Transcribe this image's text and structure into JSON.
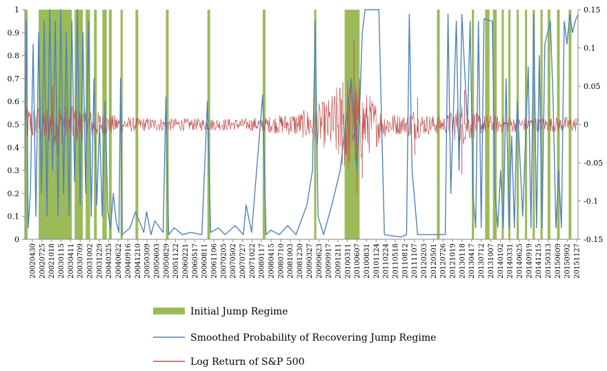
{
  "chart_data": {
    "type": "line",
    "title": "",
    "left_axis": {
      "ylim": [
        0,
        1
      ],
      "ticks": [
        "0",
        "0.1",
        "0.2",
        "0.3",
        "0.4",
        "0.5",
        "0.6",
        "0.7",
        "0.8",
        "0.9",
        "1"
      ]
    },
    "right_axis": {
      "ylim": [
        -0.15,
        0.15
      ],
      "ticks": [
        "-0.15",
        "-0.1",
        "-0.05",
        "0",
        "0.05",
        "0.1",
        "0.15"
      ]
    },
    "x_ticks": [
      "20020430",
      "20020725",
      "20021018",
      "20030115",
      "20030411",
      "20030709",
      "20031002",
      "20031229",
      "20040325",
      "20040622",
      "20040916",
      "20041210",
      "20050309",
      "20050603",
      "20050829",
      "20051122",
      "20060221",
      "20060517",
      "20060811",
      "20061106",
      "20070205",
      "20070502",
      "20070727",
      "20071022",
      "20080117",
      "20080415",
      "20080710",
      "20081003",
      "20081230",
      "20090327",
      "20090623",
      "20090917",
      "20091211",
      "20100311",
      "20100607",
      "20100831",
      "20101124",
      "20110224",
      "20110518",
      "20110812",
      "20111107",
      "20120203",
      "20120501",
      "20120726",
      "20121019",
      "20130118",
      "20130417",
      "20130712",
      "20131007",
      "20140102",
      "20140331",
      "20140625",
      "20140919",
      "20141215",
      "20150313",
      "20150609",
      "20150902",
      "20151127"
    ],
    "grid": false,
    "legend_position": "bottom",
    "colors": {
      "jump": "#9bbb59",
      "prob": "#4f81bd",
      "ret": "#c0504d"
    },
    "series": [
      {
        "name": "Initial Jump Regime",
        "kind": "regime-bands",
        "axis": "left",
        "bands": [
          [
            0.0,
            0.005
          ],
          [
            0.025,
            0.085
          ],
          [
            0.09,
            0.105
          ],
          [
            0.11,
            0.118
          ],
          [
            0.125,
            0.13
          ],
          [
            0.14,
            0.148
          ],
          [
            0.152,
            0.157
          ],
          [
            0.173,
            0.177
          ],
          [
            0.2,
            0.205
          ],
          [
            0.255,
            0.26
          ],
          [
            0.33,
            0.335
          ],
          [
            0.43,
            0.435
          ],
          [
            0.523,
            0.527
          ],
          [
            0.578,
            0.605
          ],
          [
            0.745,
            0.75
          ],
          [
            0.808,
            0.812
          ],
          [
            0.832,
            0.84
          ],
          [
            0.846,
            0.853
          ],
          [
            0.862,
            0.866
          ],
          [
            0.874,
            0.878
          ],
          [
            0.889,
            0.893
          ],
          [
            0.904,
            0.908
          ],
          [
            0.918,
            0.922
          ],
          [
            0.932,
            0.936
          ],
          [
            0.945,
            0.95
          ],
          [
            0.962,
            0.967
          ],
          [
            0.983,
            0.988
          ]
        ]
      },
      {
        "name": "Smoothed Probability of Recovering Jump Regime",
        "kind": "line",
        "axis": "left",
        "points": [
          [
            0.0,
            0.3
          ],
          [
            0.003,
            0.95
          ],
          [
            0.006,
            0.05
          ],
          [
            0.01,
            0.2
          ],
          [
            0.015,
            0.85
          ],
          [
            0.02,
            0.1
          ],
          [
            0.025,
            0.9
          ],
          [
            0.03,
            0.2
          ],
          [
            0.035,
            0.95
          ],
          [
            0.04,
            0.1
          ],
          [
            0.045,
            1.0
          ],
          [
            0.05,
            0.3
          ],
          [
            0.055,
            0.95
          ],
          [
            0.06,
            0.1
          ],
          [
            0.065,
            1.0
          ],
          [
            0.07,
            0.2
          ],
          [
            0.075,
            0.9
          ],
          [
            0.08,
            0.1
          ],
          [
            0.085,
            0.95
          ],
          [
            0.09,
            0.25
          ],
          [
            0.095,
            1.0
          ],
          [
            0.1,
            0.15
          ],
          [
            0.105,
            0.9
          ],
          [
            0.11,
            0.2
          ],
          [
            0.115,
            0.95
          ],
          [
            0.12,
            0.1
          ],
          [
            0.125,
            0.7
          ],
          [
            0.13,
            0.15
          ],
          [
            0.135,
            0.5
          ],
          [
            0.14,
            0.1
          ],
          [
            0.145,
            0.6
          ],
          [
            0.15,
            0.12
          ],
          [
            0.155,
            0.05
          ],
          [
            0.16,
            0.2
          ],
          [
            0.165,
            0.08
          ],
          [
            0.17,
            0.03
          ],
          [
            0.173,
            0.7
          ],
          [
            0.176,
            0.02
          ],
          [
            0.19,
            0.05
          ],
          [
            0.2,
            0.12
          ],
          [
            0.215,
            0.03
          ],
          [
            0.22,
            0.12
          ],
          [
            0.228,
            0.02
          ],
          [
            0.235,
            0.08
          ],
          [
            0.25,
            0.03
          ],
          [
            0.255,
            0.62
          ],
          [
            0.26,
            0.02
          ],
          [
            0.27,
            0.05
          ],
          [
            0.285,
            0.02
          ],
          [
            0.3,
            0.03
          ],
          [
            0.32,
            0.02
          ],
          [
            0.33,
            0.6
          ],
          [
            0.336,
            0.03
          ],
          [
            0.35,
            0.05
          ],
          [
            0.362,
            0.02
          ],
          [
            0.38,
            0.06
          ],
          [
            0.395,
            0.02
          ],
          [
            0.4,
            0.15
          ],
          [
            0.41,
            0.03
          ],
          [
            0.43,
            0.63
          ],
          [
            0.436,
            0.02
          ],
          [
            0.445,
            0.04
          ],
          [
            0.46,
            0.02
          ],
          [
            0.475,
            0.06
          ],
          [
            0.49,
            0.02
          ],
          [
            0.51,
            0.15
          ],
          [
            0.52,
            0.3
          ],
          [
            0.525,
            0.95
          ],
          [
            0.53,
            0.1
          ],
          [
            0.54,
            0.02
          ],
          [
            0.555,
            0.15
          ],
          [
            0.57,
            0.3
          ],
          [
            0.58,
            0.5
          ],
          [
            0.59,
            0.7
          ],
          [
            0.6,
            0.3
          ],
          [
            0.605,
            0.55
          ],
          [
            0.61,
            0.9
          ],
          [
            0.615,
            1.0
          ],
          [
            0.64,
            1.0
          ],
          [
            0.645,
            0.5
          ],
          [
            0.65,
            0.02
          ],
          [
            0.68,
            0.01
          ],
          [
            0.69,
            0.02
          ],
          [
            0.695,
            0.98
          ],
          [
            0.7,
            0.3
          ],
          [
            0.71,
            0.02
          ],
          [
            0.76,
            0.02
          ],
          [
            0.765,
            0.98
          ],
          [
            0.77,
            0.2
          ],
          [
            0.78,
            0.95
          ],
          [
            0.785,
            0.3
          ],
          [
            0.79,
            0.98
          ],
          [
            0.8,
            0.5
          ],
          [
            0.805,
            0.95
          ],
          [
            0.81,
            0.2
          ],
          [
            0.815,
            0.05
          ],
          [
            0.82,
            0.95
          ],
          [
            0.825,
            0.05
          ],
          [
            0.83,
            0.96
          ],
          [
            0.845,
            0.95
          ],
          [
            0.85,
            0.2
          ],
          [
            0.855,
            0.05
          ],
          [
            0.86,
            0.3
          ],
          [
            0.865,
            0.05
          ],
          [
            0.87,
            0.7
          ],
          [
            0.875,
            0.05
          ],
          [
            0.88,
            0.45
          ],
          [
            0.885,
            0.05
          ],
          [
            0.89,
            0.6
          ],
          [
            0.9,
            0.1
          ],
          [
            0.91,
            0.75
          ],
          [
            0.915,
            0.05
          ],
          [
            0.92,
            0.98
          ],
          [
            0.925,
            0.05
          ],
          [
            0.93,
            0.8
          ],
          [
            0.935,
            0.05
          ],
          [
            0.94,
            0.85
          ],
          [
            0.95,
            0.95
          ],
          [
            0.955,
            0.6
          ],
          [
            0.96,
            0.05
          ],
          [
            0.965,
            0.3
          ],
          [
            0.97,
            0.05
          ],
          [
            0.975,
            0.95
          ],
          [
            0.98,
            0.85
          ],
          [
            0.985,
            0.98
          ],
          [
            0.99,
            0.9
          ],
          [
            0.995,
            0.95
          ],
          [
            1.0,
            0.98
          ]
        ]
      },
      {
        "name": "Log Return of S&P 500",
        "kind": "line",
        "axis": "right",
        "description": "daily log returns; volatility clusters around 2002–2003, late 2008 (peaks near ±0.1), 2010 and 2011",
        "amplitude_profile": [
          [
            0.0,
            0.02
          ],
          [
            0.05,
            0.025
          ],
          [
            0.1,
            0.02
          ],
          [
            0.15,
            0.012
          ],
          [
            0.2,
            0.008
          ],
          [
            0.3,
            0.007
          ],
          [
            0.4,
            0.007
          ],
          [
            0.45,
            0.01
          ],
          [
            0.5,
            0.015
          ],
          [
            0.55,
            0.03
          ],
          [
            0.58,
            0.06
          ],
          [
            0.6,
            0.05
          ],
          [
            0.63,
            0.03
          ],
          [
            0.65,
            0.015
          ],
          [
            0.69,
            0.01
          ],
          [
            0.7,
            0.02
          ],
          [
            0.72,
            0.012
          ],
          [
            0.76,
            0.01
          ],
          [
            0.79,
            0.025
          ],
          [
            0.82,
            0.012
          ],
          [
            0.9,
            0.008
          ],
          [
            1.0,
            0.009
          ]
        ],
        "key_points": [
          [
            0.595,
            0.11
          ],
          [
            0.6,
            -0.09
          ],
          [
            0.605,
            0.06
          ],
          [
            0.61,
            -0.07
          ],
          [
            0.575,
            0.055
          ],
          [
            0.58,
            -0.04
          ],
          [
            0.705,
            -0.04
          ],
          [
            0.71,
            0.035
          ],
          [
            0.79,
            -0.065
          ],
          [
            0.795,
            0.045
          ],
          [
            0.05,
            0.05
          ],
          [
            0.06,
            -0.04
          ]
        ]
      }
    ]
  },
  "legend": [
    {
      "label": "Initial Jump Regime",
      "color": "#9bbb59"
    },
    {
      "label": "Smoothed Probability of Recovering Jump Regime",
      "color": "#4f81bd"
    },
    {
      "label": "Log Return of S&P 500",
      "color": "#c0504d"
    }
  ]
}
